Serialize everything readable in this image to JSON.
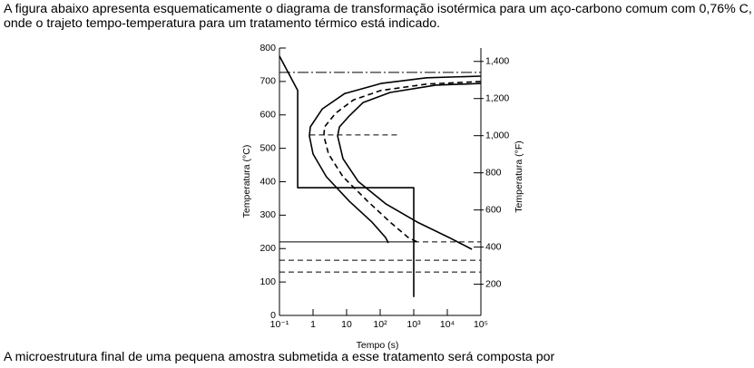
{
  "intro": "A figura abaixo apresenta esquematicamente o diagrama de transformação isotérmica para um aço-carbono comum com 0,76% C, onde o trajeto tempo-temperatura para um tratamento térmico está indicado.",
  "chart_data": {
    "type": "line",
    "x_label": "Tempo (s)",
    "y_label": "Temperatura (°C)",
    "y2_label": "Temperatura (°F)",
    "xscale": "log",
    "xlim": [
      0.1,
      100000
    ],
    "xticks": [
      {
        "value": 0.1,
        "label": "10⁻¹"
      },
      1,
      10,
      {
        "value": 100,
        "label": "10²"
      },
      {
        "value": 1000,
        "label": "10³"
      },
      {
        "value": 10000,
        "label": "10⁴"
      },
      {
        "value": 100000,
        "label": "10⁵"
      }
    ],
    "ylim": [
      0,
      800
    ],
    "yticks": [
      0,
      100,
      200,
      300,
      400,
      500,
      600,
      700,
      800
    ],
    "y2lim": [
      32,
      1472
    ],
    "y2ticks": [
      200,
      400,
      600,
      800,
      {
        "value": 1000,
        "label": "1,000"
      },
      {
        "value": 1200,
        "label": "1,200"
      },
      {
        "value": 1400,
        "label": "1,400"
      }
    ],
    "series": [
      {
        "color": "#000000",
        "style": "solid",
        "x": [
          100000,
          2400,
          106,
          8.8,
          1.9,
          0.83,
          0.78,
          1,
          2.5,
          12,
          57,
          145,
          175
        ],
        "values": [
          716,
          711,
          694,
          664,
          618,
          564,
          537,
          483,
          415,
          342,
          279,
          233,
          217
        ]
      },
      {
        "color": "#000000",
        "style": "dashed",
        "x": [
          100000,
          2400,
          106,
          16,
          4.7,
          2.2,
          2.1,
          2.9,
          7.8,
          42,
          198,
          690,
          1450
        ],
        "values": [
          700,
          692,
          673,
          645,
          605,
          564,
          537,
          483,
          415,
          342,
          279,
          233,
          217
        ]
      },
      {
        "color": "#000000",
        "style": "solid",
        "x": [
          100000,
          4500,
          198,
          31,
          12,
          6.1,
          5.4,
          7.8,
          22,
          145,
          1280,
          11300,
          54000
        ],
        "values": [
          694,
          689,
          667,
          637,
          597,
          564,
          537,
          469,
          401,
          334,
          279,
          233,
          198
        ]
      },
      {
        "color": "#000000",
        "style": "solid",
        "x": [
          0.1,
          0.35,
          0.35,
          1000,
          1000
        ],
        "values": [
          776,
          673,
          382,
          382,
          55
        ]
      }
    ],
    "reference_lines": [
      {
        "value": 727,
        "style": "dashdot",
        "x": [
          0.1,
          100000
        ]
      },
      {
        "value": 540,
        "style": "dashed",
        "x": [
          0.8,
          370
        ]
      },
      {
        "value": 220,
        "style": "solid",
        "x": [
          0.1,
          1000
        ]
      },
      {
        "value": 220,
        "style": "dashed",
        "x": [
          1000,
          100000
        ]
      },
      {
        "value": 165,
        "style": "dashed",
        "x": [
          0.1,
          100000
        ]
      },
      {
        "value": 130,
        "style": "dashed",
        "x": [
          0.1,
          100000
        ]
      }
    ]
  },
  "closing": "A microestrutura final de uma pequena amostra submetida a esse tratamento será composta por"
}
